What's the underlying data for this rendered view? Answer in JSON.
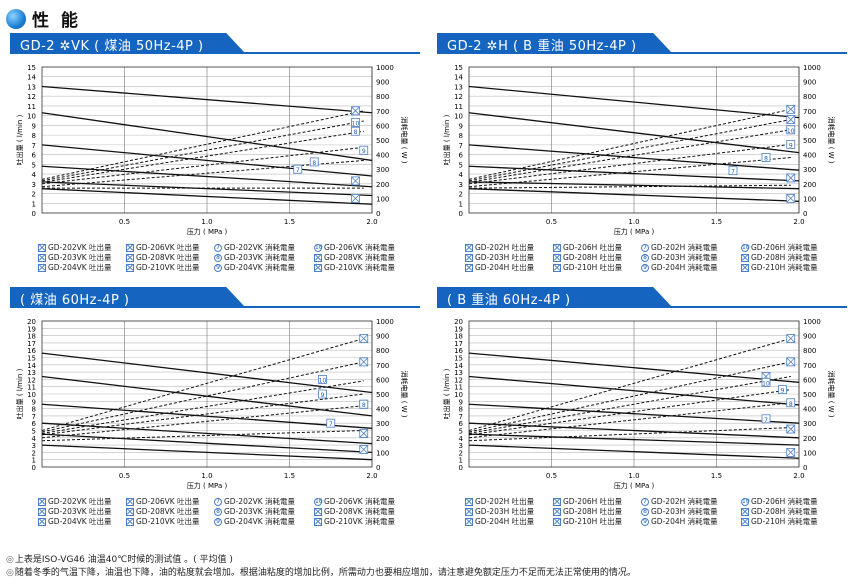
{
  "section_title": "性 能",
  "charts": [
    {
      "tab": "GD-2 ✲VK ( 煤油 50Hz-4P )",
      "legend": [
        "GD-202VK 吐出量",
        "GD-203VK 吐出量",
        "GD-204VK 吐出量",
        "GD-206VK 吐出量",
        "GD-208VK 吐出量",
        "GD-210VK 吐出量",
        "GD-202VK 消耗電量",
        "GD-203VK 消耗電量",
        "GD-204VK 消耗電量",
        "GD-206VK 消耗電量",
        "GD-208VK 消耗電量",
        "GD-210VK 消耗電量"
      ]
    },
    {
      "tab": "GD-2 ✲H ( B 重油 50Hz-4P )",
      "legend": [
        "GD-202H 吐出量",
        "GD-203H 吐出量",
        "GD-204H 吐出量",
        "GD-206H 吐出量",
        "GD-208H 吐出量",
        "GD-210H 吐出量",
        "GD-202H 消耗電量",
        "GD-203H 消耗電量",
        "GD-204H 消耗電量",
        "GD-206H 消耗電量",
        "GD-208H 消耗電量",
        "GD-210H 消耗電量"
      ]
    },
    {
      "tab": "( 煤油 60Hz-4P )",
      "legend": [
        "GD-202VK 吐出量",
        "GD-203VK 吐出量",
        "GD-204VK 吐出量",
        "GD-206VK 吐出量",
        "GD-208VK 吐出量",
        "GD-210VK 吐出量",
        "GD-202VK 消耗電量",
        "GD-203VK 消耗電量",
        "GD-204VK 消耗電量",
        "GD-206VK 消耗電量",
        "GD-208VK 消耗電量",
        "GD-210VK 消耗電量"
      ]
    },
    {
      "tab": "( B 重油 60Hz-4P )",
      "legend": [
        "GD-202H 吐出量",
        "GD-203H 吐出量",
        "GD-204H 吐出量",
        "GD-206H 吐出量",
        "GD-208H 吐出量",
        "GD-210H 吐出量",
        "GD-202H 消耗電量",
        "GD-203H 消耗電量",
        "GD-204H 消耗電量",
        "GD-206H 消耗電量",
        "GD-208H 消耗電量",
        "GD-210H 消耗電量"
      ]
    }
  ],
  "legend_markers": [
    "x",
    "x",
    "x",
    "x",
    "x",
    "x",
    "7",
    "8",
    "9",
    "10",
    "x",
    "x"
  ],
  "notes": [
    "上表是ISO-VG46 油温40℃时候的测试值 。( 平均值 )",
    "随着冬季的气温下降，油温也下降，油的粘度就会增加。根据油粘度的增加比例，所需动力也要相应增加，请注意避免额定压力不足而无法正常使用的情况。"
  ],
  "chart_data": [
    {
      "type": "line",
      "xlabel": "压力 ( MPa )",
      "ylabel": "吐出量 ( l/min )",
      "y2label": "消耗电量 ( W )",
      "xlim": [
        0,
        2.0
      ],
      "xticks": [
        0.5,
        1.0,
        1.5,
        2.0
      ],
      "ylim": [
        0,
        15
      ],
      "y2lim": [
        0,
        1000
      ],
      "flow": [
        [
          13,
          10.3
        ],
        [
          10.3,
          5.4
        ],
        [
          7,
          3.8
        ],
        [
          4.8,
          2.7
        ],
        [
          3.2,
          1.8
        ],
        [
          2.5,
          0.9
        ]
      ],
      "power": [
        [
          230,
          700
        ],
        [
          220,
          630
        ],
        [
          210,
          560
        ],
        [
          200,
          450
        ],
        [
          180,
          360
        ],
        [
          170,
          170
        ]
      ],
      "markers": [
        [
          "x",
          1.9,
          700
        ],
        [
          "10",
          1.9,
          620
        ],
        [
          "8",
          1.9,
          560
        ],
        [
          "9",
          1.95,
          430
        ],
        [
          "7",
          1.55,
          300
        ],
        [
          "8",
          1.65,
          350
        ],
        [
          "x",
          1.9,
          220
        ],
        [
          "x",
          1.9,
          100
        ]
      ]
    },
    {
      "type": "line",
      "xlabel": "压力 ( MPa )",
      "ylabel": "吐出量 ( l/min )",
      "y2label": "消耗电量 ( W )",
      "xlim": [
        0,
        2.0
      ],
      "xticks": [
        0.5,
        1.0,
        1.5,
        2.0
      ],
      "ylim": [
        0,
        15
      ],
      "y2lim": [
        0,
        1000
      ],
      "flow": [
        [
          13,
          9.8
        ],
        [
          10.3,
          6.2
        ],
        [
          7,
          4.4
        ],
        [
          4.8,
          3.3
        ],
        [
          3.2,
          2.5
        ],
        [
          2.5,
          1.2
        ]
      ],
      "power": [
        [
          230,
          710
        ],
        [
          220,
          640
        ],
        [
          210,
          570
        ],
        [
          200,
          470
        ],
        [
          180,
          380
        ],
        [
          170,
          190
        ]
      ],
      "markers": [
        [
          "x",
          1.95,
          710
        ],
        [
          "x",
          1.95,
          640
        ],
        [
          "10",
          1.95,
          570
        ],
        [
          "9",
          1.95,
          470
        ],
        [
          "8",
          1.8,
          380
        ],
        [
          "7",
          1.6,
          290
        ],
        [
          "x",
          1.95,
          240
        ],
        [
          "x",
          1.95,
          100
        ]
      ]
    },
    {
      "type": "line",
      "xlabel": "压力 ( MPa )",
      "ylabel": "吐出量 ( l/min )",
      "y2label": "消耗电量 ( W )",
      "xlim": [
        0,
        2.0
      ],
      "xticks": [
        0.5,
        1.0,
        1.5,
        2.0
      ],
      "ylim": [
        0,
        20
      ],
      "y2lim": [
        0,
        1000
      ],
      "flow": [
        [
          15.6,
          10.2
        ],
        [
          12.4,
          7.0
        ],
        [
          8.6,
          5.3
        ],
        [
          6.0,
          3.2
        ],
        [
          4.5,
          2.0
        ],
        [
          3.0,
          1.0
        ]
      ],
      "power": [
        [
          250,
          880
        ],
        [
          240,
          720
        ],
        [
          230,
          590
        ],
        [
          220,
          500
        ],
        [
          200,
          420
        ],
        [
          180,
          250
        ]
      ],
      "markers": [
        [
          "x",
          1.95,
          880
        ],
        [
          "x",
          1.95,
          720
        ],
        [
          "10",
          1.7,
          600
        ],
        [
          "9",
          1.7,
          500
        ],
        [
          "x",
          1.95,
          430
        ],
        [
          "8",
          1.95,
          430
        ],
        [
          "7",
          1.75,
          300
        ],
        [
          "x",
          1.95,
          230
        ],
        [
          "x",
          1.95,
          120
        ]
      ]
    },
    {
      "type": "line",
      "xlabel": "压力 ( MPa )",
      "ylabel": "吐出量 ( l/min )",
      "y2label": "消耗电量 ( W )",
      "xlim": [
        0,
        2.0
      ],
      "xticks": [
        0.5,
        1.0,
        1.5,
        2.0
      ],
      "ylim": [
        0,
        20
      ],
      "y2lim": [
        0,
        1000
      ],
      "flow": [
        [
          15.6,
          11.6
        ],
        [
          12.4,
          8.5
        ],
        [
          8.6,
          6.0
        ],
        [
          6.0,
          4.0
        ],
        [
          4.5,
          3.0
        ],
        [
          3.0,
          1.2
        ]
      ],
      "power": [
        [
          250,
          880
        ],
        [
          240,
          720
        ],
        [
          230,
          620
        ],
        [
          220,
          530
        ],
        [
          200,
          440
        ],
        [
          180,
          270
        ]
      ],
      "markers": [
        [
          "x",
          1.95,
          880
        ],
        [
          "x",
          1.95,
          720
        ],
        [
          "x",
          1.8,
          620
        ],
        [
          "10",
          1.8,
          580
        ],
        [
          "9",
          1.9,
          530
        ],
        [
          "8",
          1.95,
          440
        ],
        [
          "7",
          1.8,
          330
        ],
        [
          "x",
          1.95,
          260
        ],
        [
          "x",
          1.95,
          100
        ]
      ]
    }
  ]
}
